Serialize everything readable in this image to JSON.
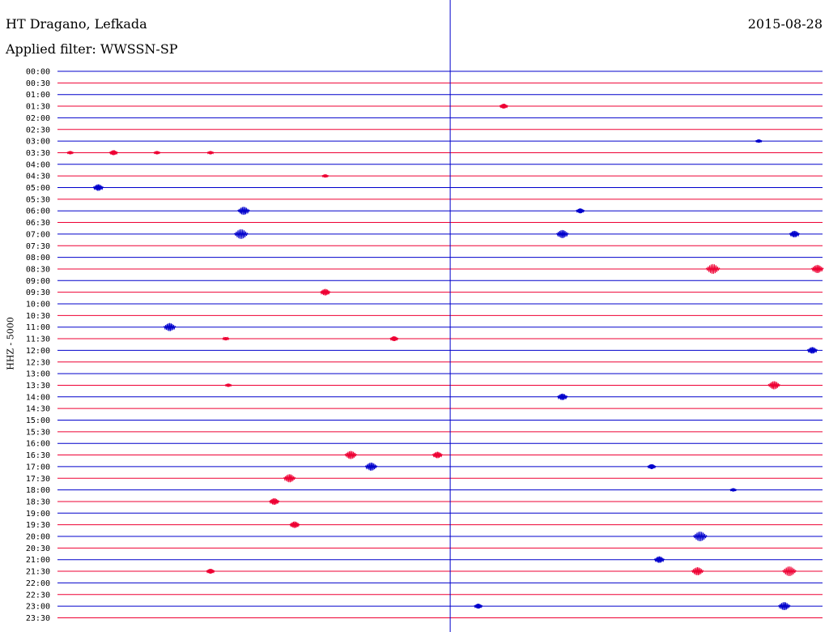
{
  "header": {
    "station": "HT Dragano, Lefkada",
    "filter": "Applied filter: WWSSN-SP",
    "date": "2015-08-28"
  },
  "chart_data": {
    "type": "line",
    "title": "HT Dragano, Lefkada",
    "subtitle": "Applied filter: WWSSN-SP",
    "date": "2015-08-28",
    "ylabel": "HHZ - 5000",
    "row_minutes": 30,
    "trace_colors": [
      "#0000cc",
      "#ee0033"
    ],
    "marker_color": "#0000cc",
    "marker_minute": 15.4,
    "rows": [
      {
        "label": "00:00",
        "events": []
      },
      {
        "label": "00:30",
        "events": []
      },
      {
        "label": "01:00",
        "events": []
      },
      {
        "label": "01:30",
        "events": [
          {
            "minute": 17.5,
            "amp": 3
          }
        ]
      },
      {
        "label": "02:00",
        "events": []
      },
      {
        "label": "02:30",
        "events": []
      },
      {
        "label": "03:00",
        "events": [
          {
            "minute": 27.5,
            "amp": 2
          }
        ]
      },
      {
        "label": "03:30",
        "events": [
          {
            "minute": 0.5,
            "amp": 2
          },
          {
            "minute": 2.2,
            "amp": 3
          },
          {
            "minute": 3.9,
            "amp": 2
          },
          {
            "minute": 6.0,
            "amp": 2
          }
        ]
      },
      {
        "label": "04:00",
        "events": []
      },
      {
        "label": "04:30",
        "events": [
          {
            "minute": 10.5,
            "amp": 2
          }
        ]
      },
      {
        "label": "05:00",
        "events": [
          {
            "minute": 1.6,
            "amp": 4
          }
        ]
      },
      {
        "label": "05:30",
        "events": []
      },
      {
        "label": "06:00",
        "events": [
          {
            "minute": 7.3,
            "amp": 5
          },
          {
            "minute": 20.5,
            "amp": 3
          }
        ]
      },
      {
        "label": "06:30",
        "events": []
      },
      {
        "label": "07:00",
        "events": [
          {
            "minute": 7.2,
            "amp": 6
          },
          {
            "minute": 19.8,
            "amp": 5
          },
          {
            "minute": 28.9,
            "amp": 4
          }
        ]
      },
      {
        "label": "07:30",
        "events": []
      },
      {
        "label": "08:00",
        "events": []
      },
      {
        "label": "08:30",
        "events": [
          {
            "minute": 25.7,
            "amp": 6
          },
          {
            "minute": 29.8,
            "amp": 5
          }
        ]
      },
      {
        "label": "09:00",
        "events": []
      },
      {
        "label": "09:30",
        "events": [
          {
            "minute": 10.5,
            "amp": 4
          }
        ]
      },
      {
        "label": "10:00",
        "events": []
      },
      {
        "label": "10:30",
        "events": []
      },
      {
        "label": "11:00",
        "events": [
          {
            "minute": 4.4,
            "amp": 5
          }
        ]
      },
      {
        "label": "11:30",
        "events": [
          {
            "minute": 6.6,
            "amp": 2
          },
          {
            "minute": 13.2,
            "amp": 3
          }
        ]
      },
      {
        "label": "12:00",
        "events": [
          {
            "minute": 29.6,
            "amp": 4
          }
        ]
      },
      {
        "label": "12:30",
        "events": []
      },
      {
        "label": "13:00",
        "events": []
      },
      {
        "label": "13:30",
        "events": [
          {
            "minute": 6.7,
            "amp": 2
          },
          {
            "minute": 28.1,
            "amp": 5
          }
        ]
      },
      {
        "label": "14:00",
        "events": [
          {
            "minute": 19.8,
            "amp": 4
          }
        ]
      },
      {
        "label": "14:30",
        "events": []
      },
      {
        "label": "15:00",
        "events": []
      },
      {
        "label": "15:30",
        "events": []
      },
      {
        "label": "16:00",
        "events": []
      },
      {
        "label": "16:30",
        "events": [
          {
            "minute": 11.5,
            "amp": 5
          },
          {
            "minute": 14.9,
            "amp": 4
          }
        ]
      },
      {
        "label": "17:00",
        "events": [
          {
            "minute": 12.3,
            "amp": 5
          },
          {
            "minute": 23.3,
            "amp": 3
          }
        ]
      },
      {
        "label": "17:30",
        "events": [
          {
            "minute": 9.1,
            "amp": 5
          }
        ]
      },
      {
        "label": "18:00",
        "events": [
          {
            "minute": 26.5,
            "amp": 2
          }
        ]
      },
      {
        "label": "18:30",
        "events": [
          {
            "minute": 8.5,
            "amp": 4
          }
        ]
      },
      {
        "label": "19:00",
        "events": []
      },
      {
        "label": "19:30",
        "events": [
          {
            "minute": 9.3,
            "amp": 4
          }
        ]
      },
      {
        "label": "20:00",
        "events": [
          {
            "minute": 25.2,
            "amp": 6
          }
        ]
      },
      {
        "label": "20:30",
        "events": []
      },
      {
        "label": "21:00",
        "events": [
          {
            "minute": 23.6,
            "amp": 4
          }
        ]
      },
      {
        "label": "21:30",
        "events": [
          {
            "minute": 6.0,
            "amp": 3
          },
          {
            "minute": 25.1,
            "amp": 5
          },
          {
            "minute": 28.7,
            "amp": 6
          }
        ]
      },
      {
        "label": "22:00",
        "events": []
      },
      {
        "label": "22:30",
        "events": []
      },
      {
        "label": "23:00",
        "events": [
          {
            "minute": 16.5,
            "amp": 3
          },
          {
            "minute": 28.5,
            "amp": 5
          }
        ]
      },
      {
        "label": "23:30",
        "events": []
      }
    ]
  }
}
